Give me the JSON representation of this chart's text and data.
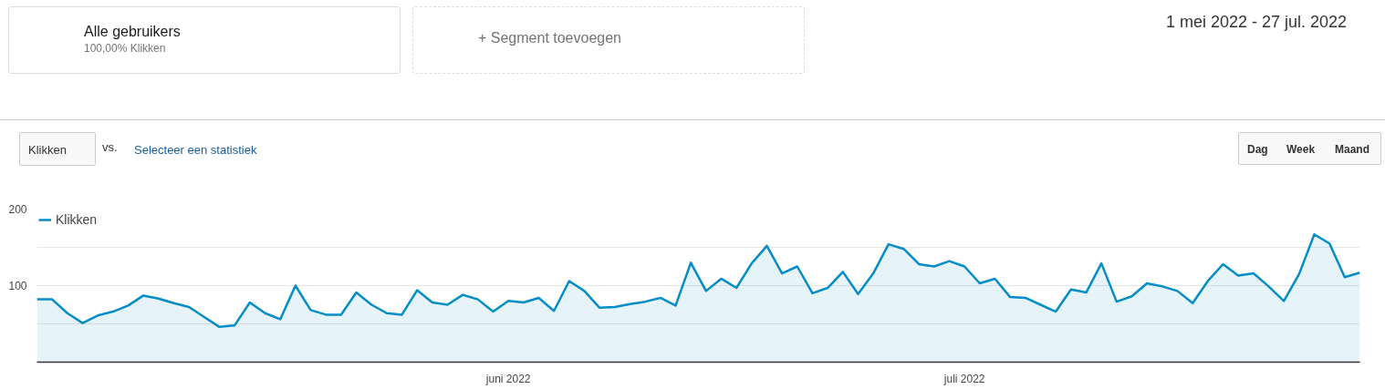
{
  "chart_data": {
    "type": "area",
    "annotations": [
      "Alle gebruikers",
      "100,00% Klikken",
      "+ Segment toevoegen",
      "1 mei 2022 - 27 jul. 2022",
      "Klikken",
      "vs.",
      "Selecteer een statistiek",
      "Dag",
      "Week",
      "Maand"
    ],
    "x": [
      "2022-05-01",
      "2022-05-02",
      "2022-05-03",
      "2022-05-04",
      "2022-05-05",
      "2022-05-06",
      "2022-05-07",
      "2022-05-08",
      "2022-05-09",
      "2022-05-10",
      "2022-05-11",
      "2022-05-12",
      "2022-05-13",
      "2022-05-14",
      "2022-05-15",
      "2022-05-16",
      "2022-05-17",
      "2022-05-18",
      "2022-05-19",
      "2022-05-20",
      "2022-05-21",
      "2022-05-22",
      "2022-05-23",
      "2022-05-24",
      "2022-05-25",
      "2022-05-26",
      "2022-05-27",
      "2022-05-28",
      "2022-05-29",
      "2022-05-30",
      "2022-05-31",
      "2022-06-01",
      "2022-06-02",
      "2022-06-03",
      "2022-06-04",
      "2022-06-05",
      "2022-06-06",
      "2022-06-07",
      "2022-06-08",
      "2022-06-09",
      "2022-06-10",
      "2022-06-11",
      "2022-06-12",
      "2022-06-13",
      "2022-06-14",
      "2022-06-15",
      "2022-06-16",
      "2022-06-17",
      "2022-06-18",
      "2022-06-19",
      "2022-06-20",
      "2022-06-21",
      "2022-06-22",
      "2022-06-23",
      "2022-06-24",
      "2022-06-25",
      "2022-06-26",
      "2022-06-27",
      "2022-06-28",
      "2022-06-29",
      "2022-06-30",
      "2022-07-01",
      "2022-07-02",
      "2022-07-03",
      "2022-07-04",
      "2022-07-05",
      "2022-07-06",
      "2022-07-07",
      "2022-07-08",
      "2022-07-09",
      "2022-07-10",
      "2022-07-11",
      "2022-07-12",
      "2022-07-13",
      "2022-07-14",
      "2022-07-15",
      "2022-07-16",
      "2022-07-17",
      "2022-07-18",
      "2022-07-19",
      "2022-07-20",
      "2022-07-21",
      "2022-07-22",
      "2022-07-23",
      "2022-07-24",
      "2022-07-25",
      "2022-07-26",
      "2022-07-27"
    ],
    "series": [
      {
        "name": "Klikken",
        "color": "#058dc7",
        "values": [
          82,
          82,
          64,
          51,
          61,
          66,
          74,
          87,
          83,
          77,
          72,
          59,
          46,
          48,
          78,
          64,
          56,
          100,
          68,
          62,
          62,
          91,
          75,
          64,
          62,
          94,
          78,
          75,
          88,
          82,
          66,
          80,
          78,
          84,
          67,
          106,
          93,
          71,
          72,
          76,
          79,
          84,
          74,
          130,
          93,
          109,
          97,
          129,
          152,
          116,
          125,
          90,
          97,
          118,
          89,
          116,
          154,
          148,
          128,
          125,
          132,
          125,
          103,
          109,
          85,
          84,
          75,
          66,
          95,
          91,
          129,
          79,
          86,
          103,
          99,
          93,
          77,
          106,
          128,
          113,
          116,
          99,
          80,
          115,
          167,
          155,
          111,
          117
        ]
      }
    ],
    "xlim": [
      "2022-05-01",
      "2022-07-27"
    ],
    "xticks": [
      {
        "value": "2022-06-01",
        "label": "juni 2022"
      },
      {
        "value": "2022-07-01",
        "label": "juli 2022"
      }
    ],
    "ylim": [
      0,
      200
    ],
    "yticks": [
      {
        "value": 0,
        "label": null
      },
      {
        "value": 50,
        "label": null
      },
      100,
      {
        "value": 150,
        "label": null
      },
      200
    ],
    "grid": "y",
    "legend": "top left",
    "marker": "none"
  }
}
